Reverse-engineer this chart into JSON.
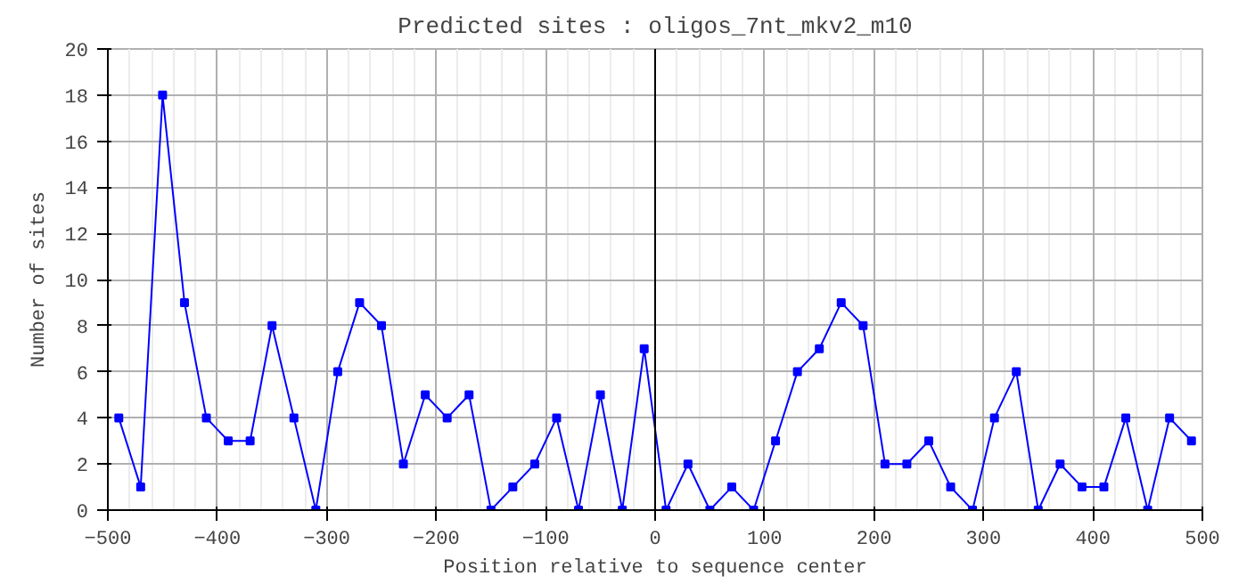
{
  "chart_data": {
    "type": "line",
    "title": "Predicted sites : oligos_7nt_mkv2_m10",
    "xlabel": "Position relative to sequence center",
    "ylabel": "Number of sites",
    "x": [
      -490,
      -470,
      -450,
      -430,
      -410,
      -390,
      -370,
      -350,
      -330,
      -310,
      -290,
      -270,
      -250,
      -230,
      -210,
      -190,
      -170,
      -150,
      -130,
      -110,
      -90,
      -70,
      -50,
      -30,
      -10,
      10,
      30,
      50,
      70,
      90,
      110,
      130,
      150,
      170,
      190,
      210,
      230,
      250,
      270,
      290,
      310,
      330,
      350,
      370,
      390,
      410,
      430,
      450,
      470,
      490
    ],
    "series": [
      {
        "color": "#0000ff",
        "values": [
          4,
          1,
          18,
          9,
          4,
          3,
          3,
          8,
          4,
          0,
          6,
          9,
          8,
          2,
          5,
          4,
          5,
          0,
          1,
          2,
          4,
          0,
          5,
          0,
          7,
          0,
          2,
          0,
          1,
          0,
          3,
          6,
          7,
          9,
          8,
          2,
          2,
          3,
          1,
          0,
          4,
          6,
          0,
          2,
          1,
          1,
          4,
          0,
          4,
          3
        ]
      }
    ],
    "xlim": [
      -500,
      500
    ],
    "ylim": [
      0,
      20
    ],
    "xticks": [
      -500,
      -400,
      -300,
      -200,
      -100,
      0,
      100,
      200,
      300,
      400,
      500
    ],
    "yticks": [
      0,
      2,
      4,
      6,
      8,
      10,
      12,
      14,
      16,
      18,
      20
    ],
    "grid": true,
    "marker": "square",
    "line_style": "solid",
    "ref_lines": [
      {
        "axis": "x",
        "value": 0,
        "color": "#000000"
      }
    ]
  }
}
